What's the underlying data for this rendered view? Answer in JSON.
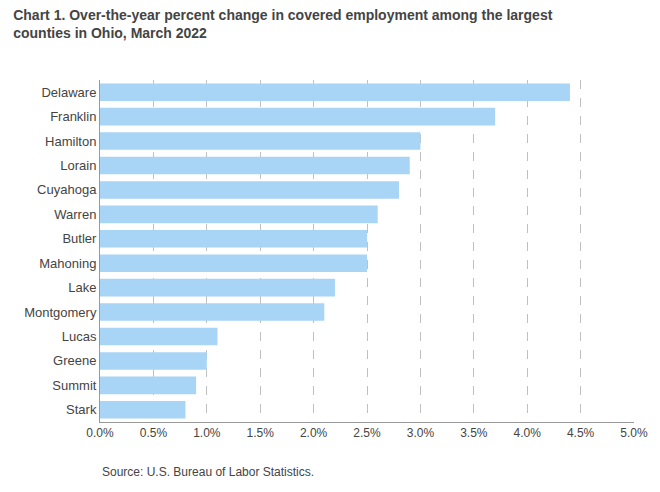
{
  "chart_data": {
    "type": "bar",
    "orientation": "horizontal",
    "title": "Chart 1. Over-the-year percent change in covered employment among the largest\ncounties in Ohio, March 2022",
    "categories": [
      "Stark",
      "Summit",
      "Greene",
      "Lucas",
      "Montgomery",
      "Lake",
      "Mahoning",
      "Butler",
      "Warren",
      "Cuyahoga",
      "Lorain",
      "Hamilton",
      "Franklin",
      "Delaware"
    ],
    "values": [
      0.008,
      0.009,
      0.01,
      0.011,
      0.021,
      0.022,
      0.025,
      0.025,
      0.026,
      0.028,
      0.029,
      0.03,
      0.037,
      0.044
    ],
    "color": "#a8d4f5",
    "xlim": [
      0,
      0.05
    ],
    "xticks": [
      {
        "value": 0.0,
        "label": "0.0%"
      },
      {
        "value": 0.005,
        "label": "0.5%"
      },
      {
        "value": 0.01,
        "label": "1.0%"
      },
      {
        "value": 0.015,
        "label": "1.5%"
      },
      {
        "value": 0.02,
        "label": "2.0%"
      },
      {
        "value": 0.025,
        "label": "2.5%"
      },
      {
        "value": 0.03,
        "label": "3.0%"
      },
      {
        "value": 0.035,
        "label": "3.5%"
      },
      {
        "value": 0.04,
        "label": "4.0%"
      },
      {
        "value": 0.045,
        "label": "4.5%"
      },
      {
        "value": 0.05,
        "label": "5.0%"
      }
    ],
    "grid": true,
    "annotations": [
      "Source: U.S. Bureau of Labor Statistics."
    ]
  }
}
